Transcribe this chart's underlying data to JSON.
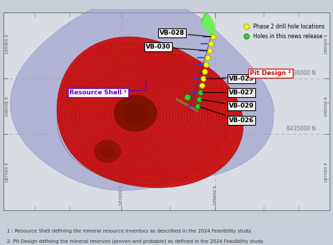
{
  "bg_color": "#c8cfd8",
  "map_bg": "#c8cfd8",
  "footnote1": "1 : Resource Shell defining the mineral resource inventory as described in the 2024 Feasibility study.",
  "footnote2": "2. Pit Design defining the mineral reserves (proven and probable) as defined in the 2024 Feasibility study.",
  "legend_items": [
    {
      "label": "Phase 2 drill hole locations",
      "color": "#ffff00",
      "edgecolor": "#888800"
    },
    {
      "label": "Holes in this news release",
      "color": "#00cc00",
      "edgecolor": "#006600"
    }
  ],
  "resource_shell_label": "Resource Shell ¹",
  "pit_design_label": "Pit Design ²",
  "resource_shell_color": "#9999cc",
  "resource_shell_alpha": 0.6,
  "pit_fill_color": "#bb0000",
  "footnote_fontsize": 5.0,
  "annotation_fontsize": 6.5
}
